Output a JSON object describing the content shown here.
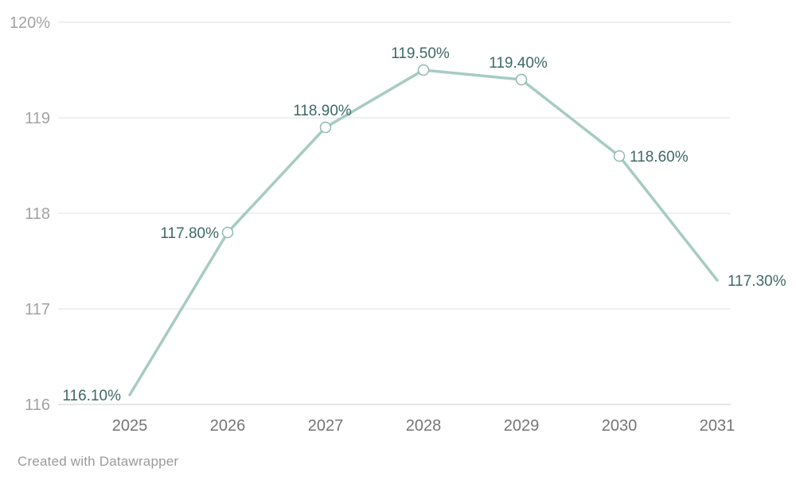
{
  "footer": {
    "credit": "Created with Datawrapper"
  },
  "chart_data": {
    "type": "line",
    "x": [
      2025,
      2026,
      2027,
      2028,
      2029,
      2030,
      2031
    ],
    "x_tick_labels": [
      "2025",
      "2026",
      "2027",
      "2028",
      "2029",
      "2030",
      "2031"
    ],
    "series": [
      {
        "name": "value",
        "values": [
          116.1,
          117.8,
          118.9,
          119.5,
          119.4,
          118.6,
          117.3
        ],
        "point_labels": [
          "116.10%",
          "117.80%",
          "118.90%",
          "119.50%",
          "119.40%",
          "118.60%",
          "117.30%"
        ]
      }
    ],
    "label_positions": [
      "left",
      "left",
      "above",
      "above",
      "above",
      "right",
      "right"
    ],
    "markers_on_interior_points_only": true,
    "y_ticks": [
      {
        "value": 116,
        "label": "116"
      },
      {
        "value": 117,
        "label": "117"
      },
      {
        "value": 118,
        "label": "118"
      },
      {
        "value": 119,
        "label": "119"
      },
      {
        "value": 120,
        "label": "120%"
      }
    ],
    "ylim": [
      116,
      120
    ],
    "grid": true,
    "legend": "none",
    "title": "",
    "xlabel": "",
    "ylabel": "",
    "colors": {
      "line": "#a6cbc3",
      "marker_fill": "#ffffff",
      "marker_stroke": "#8fbab1",
      "point_label": "#3d6a63",
      "y_tick_label": "#a2a2a2",
      "x_tick_label": "#757575",
      "gridline": "#e2e2e2",
      "baseline": "#cfcfcf",
      "credit": "#9a9a9a"
    }
  }
}
